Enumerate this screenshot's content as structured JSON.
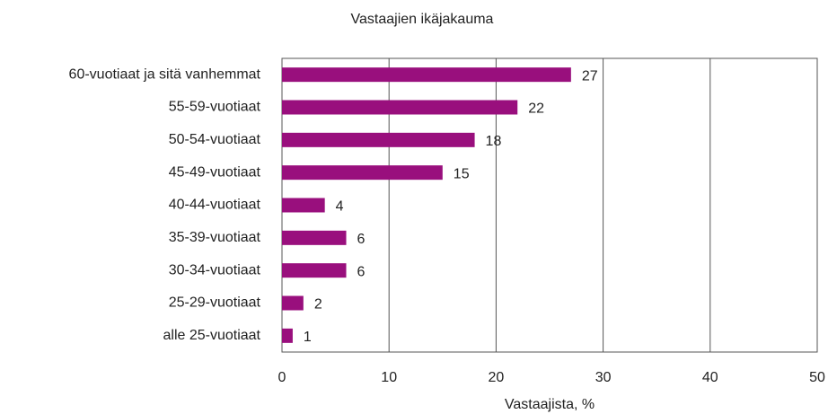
{
  "chart_data": {
    "type": "bar",
    "orientation": "horizontal",
    "title": "Vastaajien ikäjakauma",
    "xlabel": "Vastaajista, %",
    "categories": [
      "60-vuotiaat ja sitä vanhemmat",
      "55-59-vuotiaat",
      "50-54-vuotiaat",
      "45-49-vuotiaat",
      "40-44-vuotiaat",
      "35-39-vuotiaat",
      "30-34-vuotiaat",
      "25-29-vuotiaat",
      "alle 25-vuotiaat"
    ],
    "values": [
      27,
      22,
      18,
      15,
      4,
      6,
      6,
      2,
      1
    ],
    "color": "#990f7d",
    "xlim": [
      0,
      50
    ],
    "xticks": [
      0,
      10,
      20,
      30,
      40,
      50
    ],
    "grid": true
  }
}
